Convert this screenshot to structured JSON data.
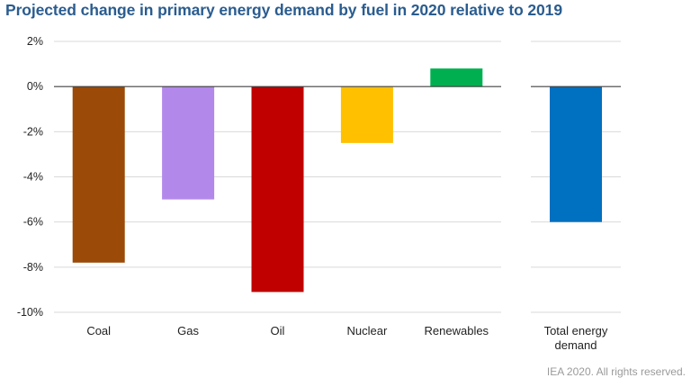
{
  "title": "Projected change in primary energy demand by fuel in 2020 relative to 2019",
  "source": "IEA 2020. All rights reserved.",
  "chart_data": [
    {
      "type": "bar",
      "title": "Projected change in primary energy demand by fuel in 2020 relative to 2019",
      "categories": [
        "Coal",
        "Gas",
        "Oil",
        "Nuclear",
        "Renewables"
      ],
      "values": [
        -7.8,
        -5.0,
        -9.1,
        -2.5,
        0.8
      ],
      "colors": [
        "#9b4a07",
        "#b388eb",
        "#c00000",
        "#ffc000",
        "#00b050"
      ],
      "unit": "%",
      "ylim": [
        -10,
        2
      ],
      "yticks": [
        2,
        0,
        -2,
        -4,
        -6,
        -8,
        -10
      ],
      "ytick_labels": [
        "2%",
        "0%",
        "-2%",
        "-4%",
        "-6%",
        "-8%",
        "-10%"
      ],
      "grid": true,
      "legend": "none"
    },
    {
      "type": "bar",
      "categories": [
        [
          "Total energy",
          "demand"
        ]
      ],
      "values": [
        -6.0
      ],
      "colors": [
        "#0070c0"
      ],
      "unit": "%",
      "ylim": [
        -10,
        2
      ],
      "grid": true,
      "legend": "none"
    }
  ]
}
